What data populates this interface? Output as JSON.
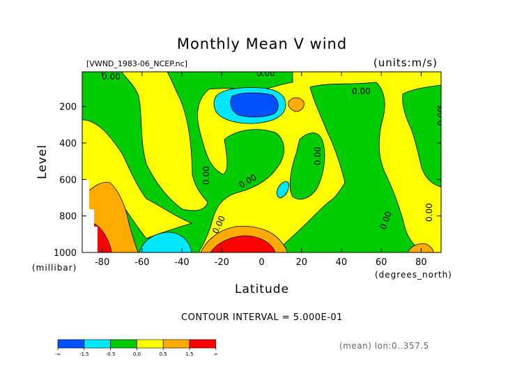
{
  "chart_data": {
    "type": "heatmap",
    "title": "Monthly Mean V wind",
    "file_label": "[VWND_1983-06_NCEP.nc]",
    "units_label": "(units:m/s)",
    "xlabel": "Latitude",
    "ylabel": "Level",
    "x_unit": "(degrees_north)",
    "y_unit": "(millibar)",
    "x_ticks": [
      "-80",
      "-60",
      "-40",
      "-20",
      "0",
      "20",
      "40",
      "60",
      "80"
    ],
    "y_ticks": [
      "200",
      "400",
      "600",
      "800",
      "1000"
    ],
    "xlim": [
      -90,
      90
    ],
    "ylim": [
      1000,
      10
    ],
    "contour_interval_text": "CONTOUR INTERVAL = 5.000E-01",
    "contour_labels": [
      "0.00",
      "0.00",
      "0.00",
      "0.00",
      "0.00",
      "0.00",
      "0.00",
      "0.00",
      "0.00",
      "0.00"
    ],
    "mean_note": "(mean) lon:0..357.5",
    "colorbar": {
      "bounds": [
        "-∞",
        "-1.5",
        "-0.5",
        "0.0",
        "0.5",
        "1.5",
        "∞"
      ],
      "colors": [
        "#0050ff",
        "#00e8ff",
        "#00cc00",
        "#ffff00",
        "#ffaa00",
        "#ff0000"
      ]
    }
  }
}
